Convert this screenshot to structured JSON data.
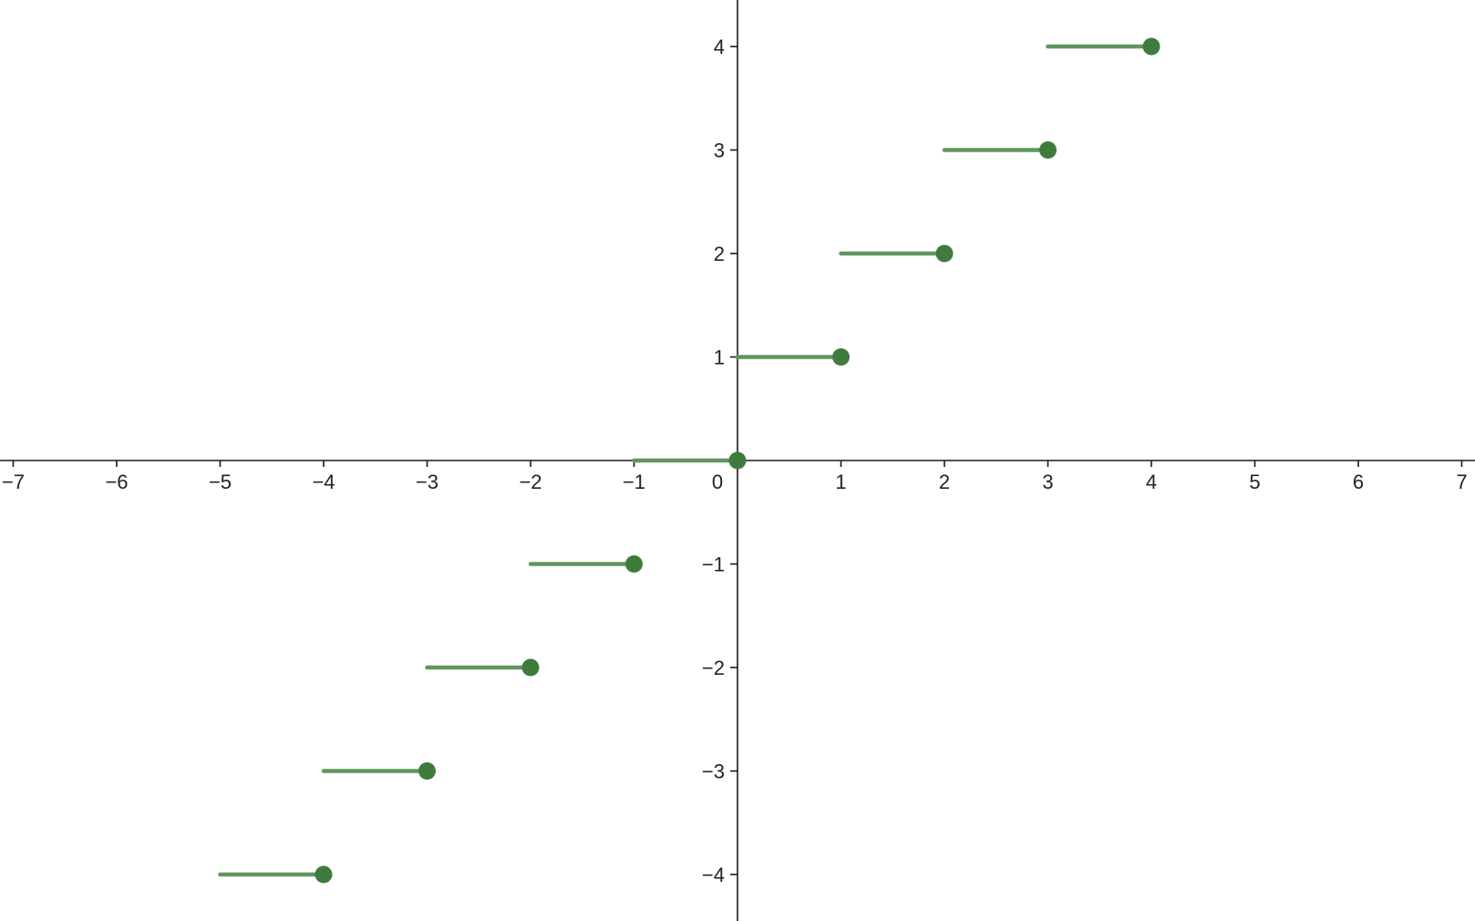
{
  "chart_data": {
    "type": "line",
    "description_of_series": "step",
    "xlim": [
      -7,
      7
    ],
    "ylim": [
      -4.4,
      4.4
    ],
    "x_ticks": [
      -7,
      -6,
      -5,
      -4,
      -3,
      -2,
      -1,
      0,
      1,
      2,
      3,
      4,
      5,
      6,
      7
    ],
    "x_tick_labels": [
      "−7",
      "−6",
      "−5",
      "−4",
      "−3",
      "−2",
      "−1",
      "0",
      "1",
      "2",
      "3",
      "4",
      "5",
      "6",
      "7"
    ],
    "y_ticks": [
      -4,
      -3,
      -2,
      -1,
      1,
      2,
      3,
      4
    ],
    "y_tick_labels": [
      "−4",
      "−3",
      "−2",
      "−1",
      "1",
      "2",
      "3",
      "4"
    ],
    "grid": false,
    "segment_color": "#5f9660",
    "dot_color": "#3f7b3d",
    "series": [
      {
        "segments": [
          {
            "x_start": -5,
            "x_end": -4,
            "y": -4
          },
          {
            "x_start": -4,
            "x_end": -3,
            "y": -3
          },
          {
            "x_start": -3,
            "x_end": -2,
            "y": -2
          },
          {
            "x_start": -2,
            "x_end": -1,
            "y": -1
          },
          {
            "x_start": -1,
            "x_end": 0,
            "y": 0
          },
          {
            "x_start": 0,
            "x_end": 1,
            "y": 1
          },
          {
            "x_start": 1,
            "x_end": 2,
            "y": 2
          },
          {
            "x_start": 2,
            "x_end": 3,
            "y": 3
          },
          {
            "x_start": 3,
            "x_end": 4,
            "y": 4
          }
        ],
        "closed_points": [
          [
            -4,
            -4
          ],
          [
            -3,
            -3
          ],
          [
            -2,
            -2
          ],
          [
            -1,
            -1
          ],
          [
            0,
            0
          ],
          [
            1,
            1
          ],
          [
            2,
            2
          ],
          [
            3,
            3
          ],
          [
            4,
            4
          ]
        ]
      }
    ]
  }
}
